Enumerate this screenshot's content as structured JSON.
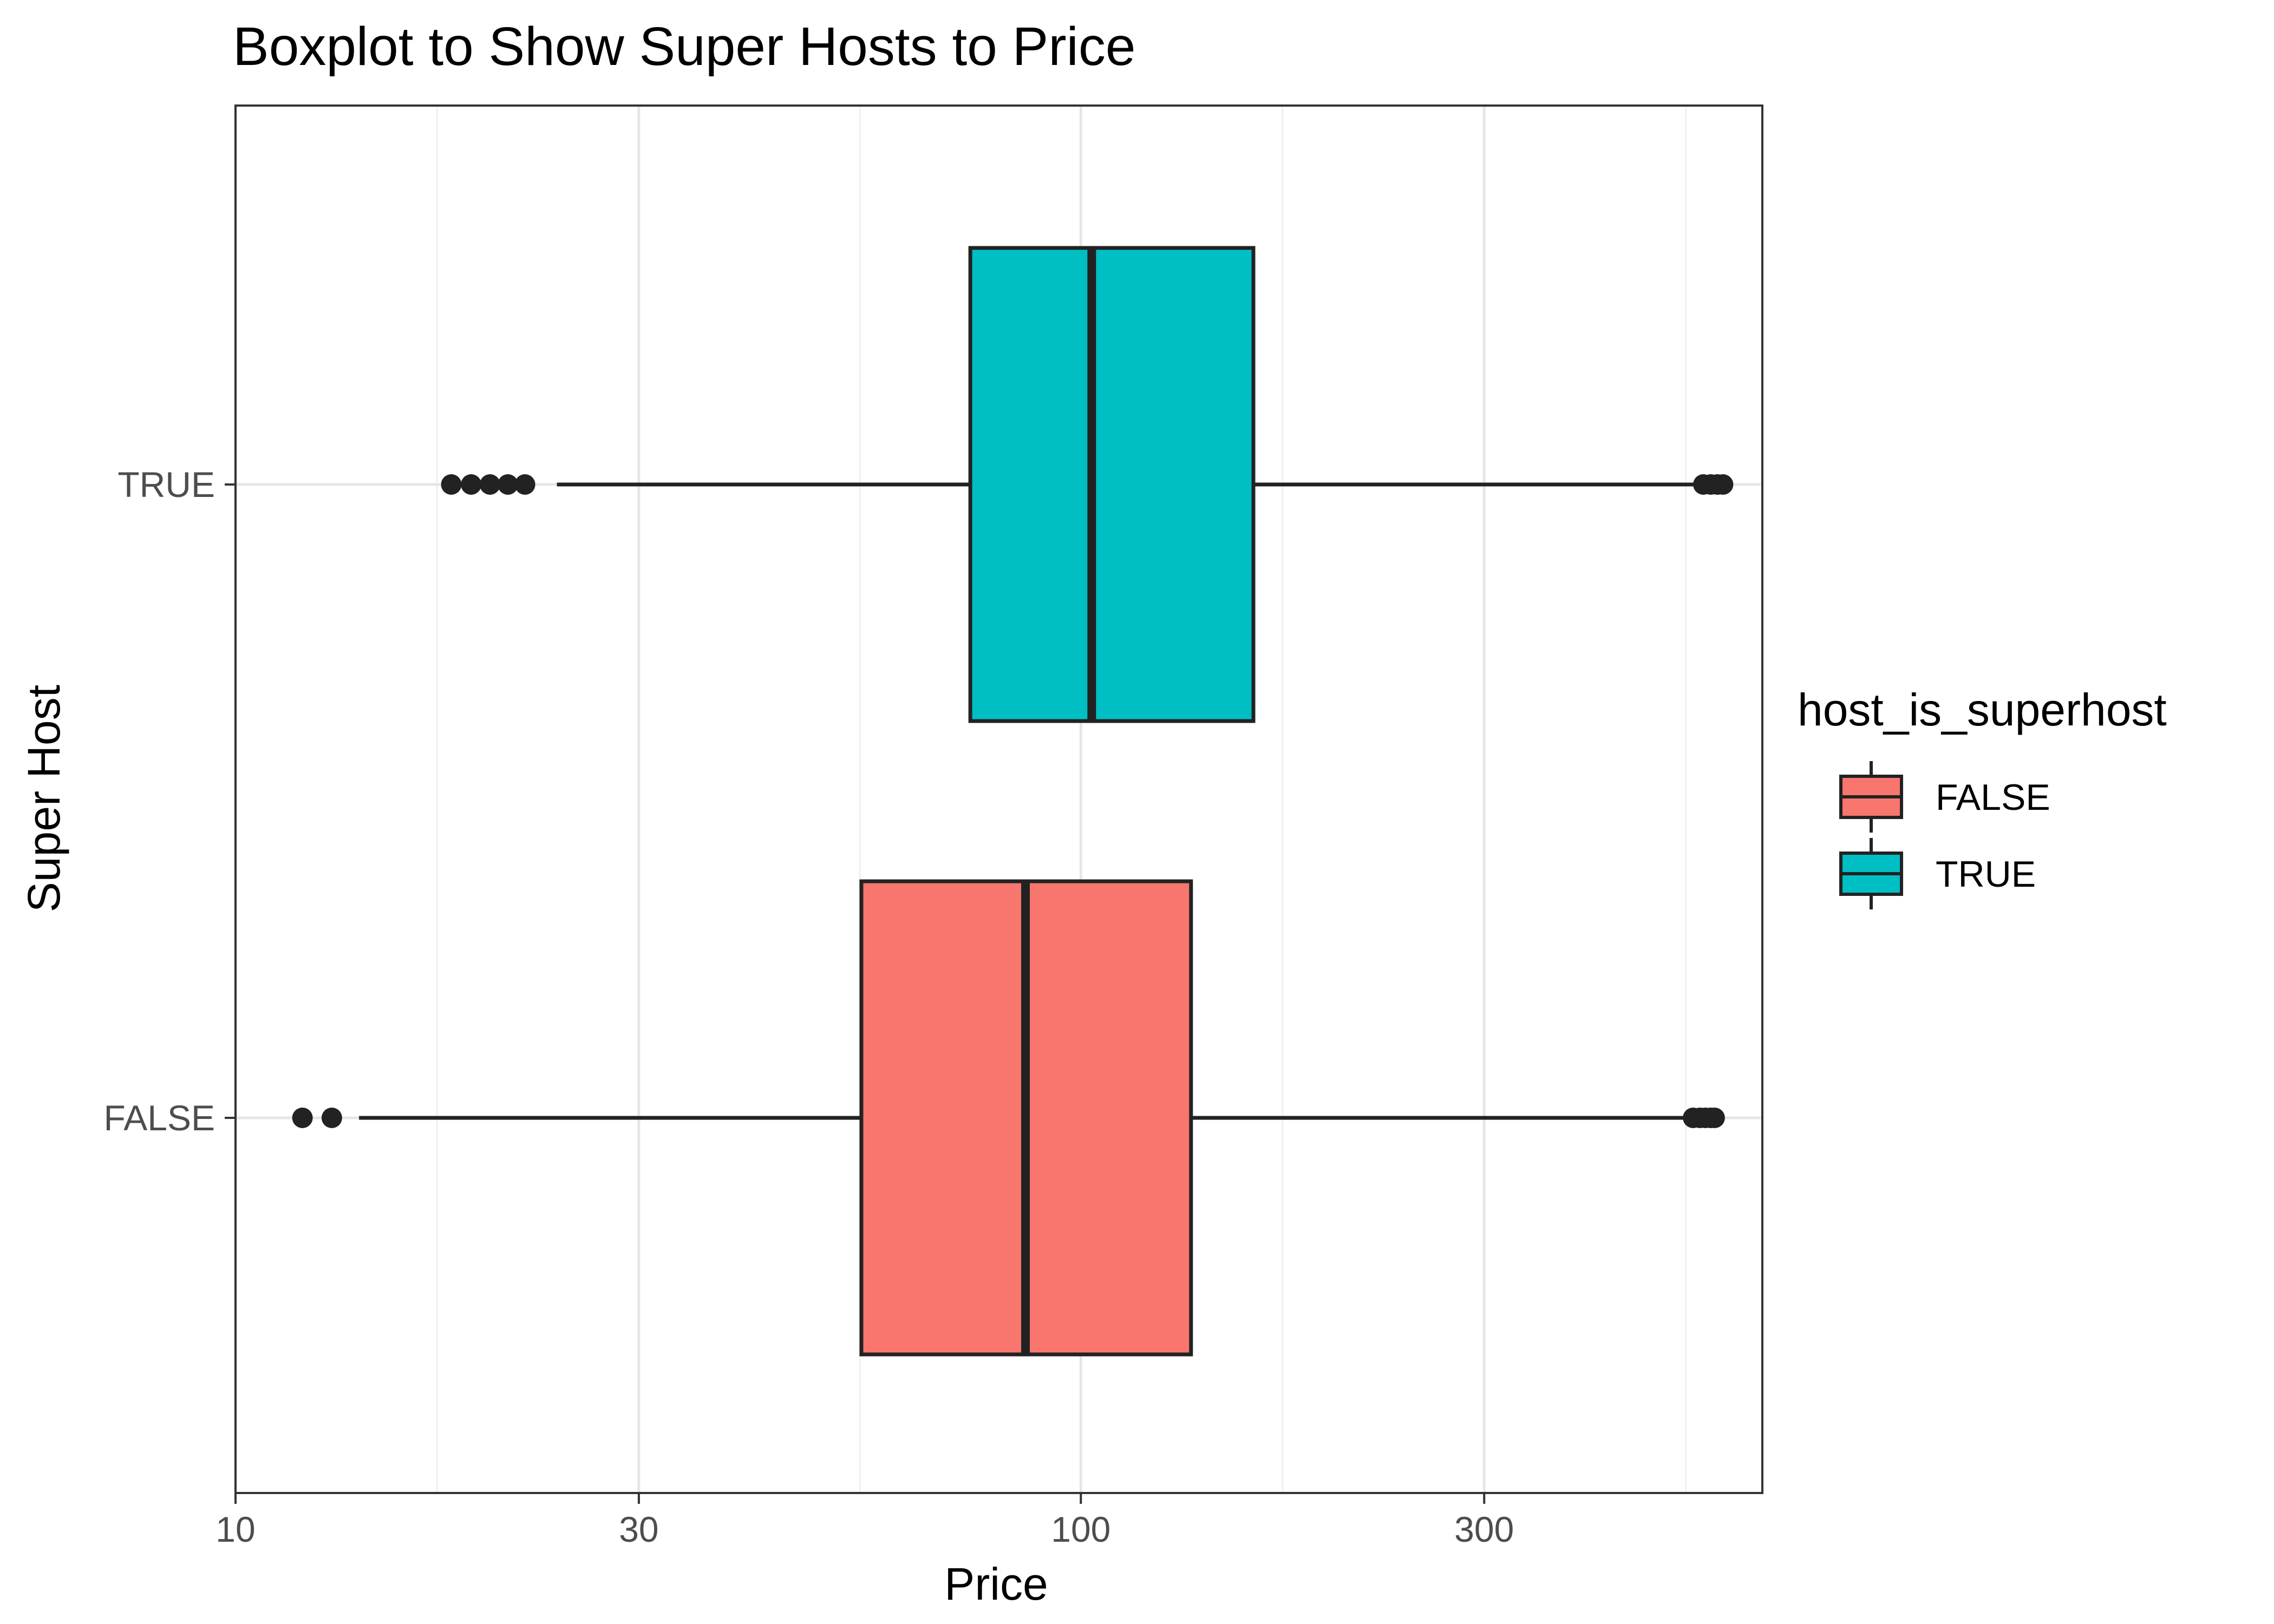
{
  "chart_data": {
    "type": "boxplot",
    "orientation": "horizontal",
    "title": "Boxplot to Show Super Hosts to Price",
    "xlabel": "Price",
    "ylabel": "Super Host",
    "x_scale": "log10",
    "xlim": [
      10,
      640
    ],
    "x_ticks": [
      {
        "value": 10,
        "label": "10"
      },
      {
        "value": 30,
        "label": "30"
      },
      {
        "value": 100,
        "label": "100"
      },
      {
        "value": 300,
        "label": "300"
      }
    ],
    "categories": [
      "FALSE",
      "TRUE"
    ],
    "legend": {
      "title": "host_is_superhost",
      "position": "right",
      "entries": [
        {
          "label": "FALSE",
          "color": "#F8766D"
        },
        {
          "label": "TRUE",
          "color": "#00BFC4"
        }
      ]
    },
    "series": [
      {
        "category": "FALSE",
        "color": "#F8766D",
        "whisker_low": 14,
        "q1": 55,
        "median": 86,
        "q3": 135,
        "whisker_high": 530,
        "outliers": [
          12,
          13,
          530,
          540,
          548,
          556,
          562
        ]
      },
      {
        "category": "TRUE",
        "color": "#00BFC4",
        "whisker_low": 24,
        "q1": 74,
        "median": 103,
        "q3": 160,
        "whisker_high": 545,
        "outliers": [
          18,
          19,
          20,
          21,
          22,
          545,
          556,
          566,
          575
        ]
      }
    ],
    "grid": true,
    "theme": "bw"
  }
}
